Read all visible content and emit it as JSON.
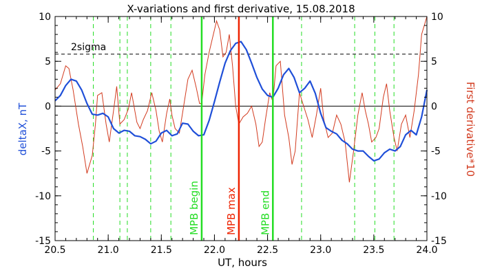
{
  "chart_data": {
    "type": "line",
    "title": "X-variations and first derivative, 15.08.2018",
    "xlabel": "UT, hours",
    "ylabel_left": "deltaX, nT",
    "ylabel_right": "First derivative*10",
    "xlim": [
      20.5,
      24.0
    ],
    "ylim_left": [
      -15,
      10
    ],
    "ylim_right": [
      -15,
      10
    ],
    "x_ticks": [
      20.5,
      21.0,
      21.5,
      22.0,
      22.5,
      23.0,
      23.5,
      24.0
    ],
    "x_tick_labels": [
      "20.5",
      "21.0",
      "21.5",
      "22.0",
      "22.5",
      "23.0",
      "23.5",
      "24.0"
    ],
    "y_ticks": [
      10,
      5,
      0,
      -5,
      -10,
      -15
    ],
    "y_tick_labels": [
      "10",
      "5",
      "0",
      "-5",
      "-10",
      "-15"
    ],
    "colors": {
      "deltaX": "#1f4fd8",
      "derivative": "#d23a1e",
      "green": "#22dd22",
      "red": "#ee2200",
      "axis": "#000000"
    },
    "zero_line": 0,
    "sigma_line": {
      "value": 5.8,
      "label": "2sigma"
    },
    "green_dashed_x": [
      20.86,
      21.11,
      21.18,
      21.4,
      21.59,
      22.82,
      23.32,
      23.51,
      23.69
    ],
    "markers": [
      {
        "label": "MPB begin",
        "x": 21.88,
        "color": "#22dd22"
      },
      {
        "label": "MPB max",
        "x": 22.23,
        "color": "#ee2200"
      },
      {
        "label": "MPB end",
        "x": 22.55,
        "color": "#22dd22"
      }
    ],
    "series": [
      {
        "name": "deltaX",
        "axis": "left",
        "x": [
          20.5,
          20.55,
          20.6,
          20.65,
          20.7,
          20.75,
          20.8,
          20.85,
          20.9,
          20.95,
          21.0,
          21.05,
          21.1,
          21.15,
          21.2,
          21.25,
          21.3,
          21.35,
          21.4,
          21.45,
          21.5,
          21.55,
          21.6,
          21.65,
          21.7,
          21.75,
          21.8,
          21.85,
          21.9,
          21.95,
          22.0,
          22.05,
          22.1,
          22.15,
          22.2,
          22.25,
          22.3,
          22.35,
          22.4,
          22.45,
          22.5,
          22.55,
          22.6,
          22.65,
          22.7,
          22.75,
          22.8,
          22.85,
          22.9,
          22.95,
          23.0,
          23.05,
          23.1,
          23.15,
          23.2,
          23.25,
          23.3,
          23.35,
          23.4,
          23.45,
          23.5,
          23.55,
          23.6,
          23.65,
          23.7,
          23.75,
          23.8,
          23.85,
          23.9,
          23.95,
          24.0
        ],
        "y": [
          0.6,
          1.2,
          2.3,
          3.0,
          2.8,
          1.8,
          0.3,
          -0.9,
          -1.0,
          -0.8,
          -1.2,
          -2.5,
          -3.0,
          -2.7,
          -2.8,
          -3.3,
          -3.4,
          -3.7,
          -4.2,
          -3.9,
          -3.0,
          -2.7,
          -3.3,
          -3.1,
          -1.9,
          -2.0,
          -2.8,
          -3.3,
          -3.2,
          -1.6,
          0.5,
          2.7,
          4.8,
          6.2,
          7.0,
          7.2,
          6.3,
          4.8,
          3.2,
          1.9,
          1.2,
          1.0,
          2.0,
          3.5,
          4.2,
          3.2,
          1.5,
          2.0,
          2.8,
          1.4,
          -0.8,
          -2.4,
          -2.8,
          -3.1,
          -3.8,
          -4.2,
          -4.8,
          -5.0,
          -5.0,
          -5.6,
          -6.1,
          -5.9,
          -5.2,
          -4.8,
          -5.0,
          -4.5,
          -3.2,
          -2.7,
          -3.2,
          -1.2,
          1.8
        ]
      },
      {
        "name": "First derivative*10",
        "axis": "right",
        "x": [
          20.5,
          20.55,
          20.6,
          20.63,
          20.67,
          20.72,
          20.76,
          20.8,
          20.85,
          20.88,
          20.9,
          20.94,
          20.98,
          21.01,
          21.05,
          21.08,
          21.11,
          21.15,
          21.19,
          21.22,
          21.27,
          21.3,
          21.33,
          21.37,
          21.41,
          21.45,
          21.48,
          21.51,
          21.55,
          21.58,
          21.6,
          21.63,
          21.67,
          21.71,
          21.75,
          21.79,
          21.83,
          21.86,
          21.88,
          21.91,
          21.95,
          21.98,
          22.02,
          22.05,
          22.08,
          22.11,
          22.14,
          22.17,
          22.2,
          22.23,
          22.27,
          22.31,
          22.35,
          22.39,
          22.42,
          22.45,
          22.48,
          22.52,
          22.55,
          22.58,
          22.62,
          22.66,
          22.7,
          22.73,
          22.76,
          22.8,
          22.84,
          22.88,
          22.92,
          22.96,
          23.0,
          23.03,
          23.07,
          23.11,
          23.15,
          23.19,
          23.23,
          23.27,
          23.31,
          23.35,
          23.39,
          23.42,
          23.45,
          23.48,
          23.52,
          23.55,
          23.59,
          23.62,
          23.65,
          23.69,
          23.72,
          23.76,
          23.8,
          23.84,
          23.88,
          23.92,
          23.95,
          24.0
        ],
        "y": [
          1.8,
          2.5,
          4.5,
          4.2,
          1.8,
          -2.0,
          -4.5,
          -7.5,
          -5.5,
          -2.0,
          1.2,
          1.5,
          -2.0,
          -4.0,
          -0.5,
          2.2,
          -2.0,
          -1.5,
          -0.3,
          1.5,
          -1.8,
          -2.5,
          -1.5,
          -0.5,
          1.5,
          -0.5,
          -2.8,
          -4.0,
          -0.8,
          0.8,
          -1.0,
          -2.5,
          -3.0,
          0.0,
          3.0,
          4.0,
          2.0,
          0.3,
          0.3,
          3.5,
          6.0,
          7.5,
          9.5,
          8.5,
          5.5,
          6.0,
          8.0,
          4.5,
          0.0,
          -2.0,
          -1.2,
          -0.8,
          0.0,
          -2.0,
          -4.5,
          -4.0,
          -1.5,
          1.5,
          0.5,
          4.5,
          5.0,
          -1.0,
          -3.5,
          -6.5,
          -5.0,
          1.5,
          0.0,
          -1.5,
          -3.5,
          -1.0,
          2.0,
          -1.5,
          -3.5,
          -3.0,
          -1.0,
          -2.0,
          -4.0,
          -8.5,
          -5.0,
          -1.0,
          1.5,
          -0.5,
          -2.0,
          -4.0,
          -3.5,
          -2.5,
          1.0,
          2.5,
          -0.5,
          -3.5,
          -5.0,
          -2.0,
          -1.0,
          -3.5,
          -0.5,
          3.5,
          8.0,
          10.0
        ]
      }
    ]
  }
}
